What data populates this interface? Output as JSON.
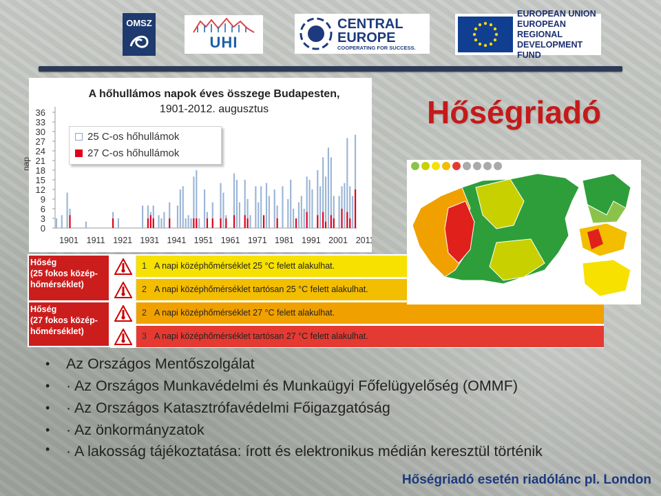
{
  "logos": {
    "omsz": "OMSZ",
    "uhi": "UHI",
    "central_europe": [
      "CENTRAL",
      "EUROPE",
      "COOPERATING FOR SUCCESS."
    ],
    "eu": [
      "EUROPEAN UNION",
      "EUROPEAN REGIONAL",
      "DEVELOPMENT FUND"
    ]
  },
  "headline": "Hőségriadó",
  "chart_data": {
    "type": "bar",
    "title": "A hőhullámos napok éves összege Budapesten,",
    "subtitle": "1901-2012. augusztus",
    "ylabel": "nap",
    "ylim": [
      0,
      36
    ],
    "yticks": [
      0,
      3,
      6,
      9,
      12,
      15,
      18,
      21,
      24,
      27,
      30,
      33,
      36
    ],
    "xticks": [
      1901,
      1911,
      1921,
      1931,
      1941,
      1951,
      1961,
      1971,
      1981,
      1991,
      2001,
      2011
    ],
    "xlim": [
      1901,
      2012
    ],
    "legend": [
      "25 C-os hőhullámok",
      "27 C-os hőhullámok"
    ],
    "colors": {
      "s25": "#9bb5d6",
      "s27": "#e0001b"
    },
    "series": [
      {
        "name": "25 C-os hőhullámok",
        "points": [
          [
            1901,
            3
          ],
          [
            1903,
            4
          ],
          [
            1905,
            11
          ],
          [
            1906,
            6
          ],
          [
            1912,
            2
          ],
          [
            1922,
            5
          ],
          [
            1924,
            3
          ],
          [
            1933,
            7
          ],
          [
            1935,
            7
          ],
          [
            1936,
            5
          ],
          [
            1937,
            7
          ],
          [
            1939,
            4
          ],
          [
            1940,
            3
          ],
          [
            1941,
            5
          ],
          [
            1943,
            8
          ],
          [
            1946,
            7
          ],
          [
            1947,
            12
          ],
          [
            1948,
            13
          ],
          [
            1949,
            3
          ],
          [
            1950,
            4
          ],
          [
            1951,
            3
          ],
          [
            1952,
            16
          ],
          [
            1953,
            18
          ],
          [
            1954,
            3
          ],
          [
            1956,
            12
          ],
          [
            1957,
            5
          ],
          [
            1959,
            8
          ],
          [
            1962,
            14
          ],
          [
            1963,
            11
          ],
          [
            1964,
            4
          ],
          [
            1967,
            17
          ],
          [
            1968,
            15
          ],
          [
            1969,
            8
          ],
          [
            1971,
            15
          ],
          [
            1972,
            9
          ],
          [
            1973,
            4
          ],
          [
            1975,
            13
          ],
          [
            1976,
            8
          ],
          [
            1977,
            13
          ],
          [
            1979,
            14
          ],
          [
            1980,
            10
          ],
          [
            1982,
            12
          ],
          [
            1983,
            7
          ],
          [
            1985,
            13
          ],
          [
            1987,
            9
          ],
          [
            1988,
            15
          ],
          [
            1989,
            6
          ],
          [
            1991,
            8
          ],
          [
            1992,
            10
          ],
          [
            1993,
            6
          ],
          [
            1994,
            16
          ],
          [
            1995,
            15
          ],
          [
            1996,
            12
          ],
          [
            1998,
            18
          ],
          [
            1999,
            13
          ],
          [
            2000,
            22
          ],
          [
            2001,
            16
          ],
          [
            2002,
            25
          ],
          [
            2003,
            22
          ],
          [
            2004,
            10
          ],
          [
            2006,
            10
          ],
          [
            2007,
            13
          ],
          [
            2008,
            14
          ],
          [
            2009,
            28
          ],
          [
            2010,
            13
          ],
          [
            2011,
            10
          ],
          [
            2012,
            29
          ]
        ]
      },
      {
        "name": "27 C-os hőhullámok",
        "points": [
          [
            1906,
            4
          ],
          [
            1922,
            3
          ],
          [
            1935,
            3
          ],
          [
            1936,
            4
          ],
          [
            1937,
            3
          ],
          [
            1943,
            3
          ],
          [
            1952,
            3
          ],
          [
            1953,
            3
          ],
          [
            1957,
            3
          ],
          [
            1959,
            3
          ],
          [
            1962,
            3
          ],
          [
            1964,
            3
          ],
          [
            1967,
            4
          ],
          [
            1971,
            4
          ],
          [
            1972,
            3
          ],
          [
            1978,
            4
          ],
          [
            1983,
            3
          ],
          [
            1990,
            3
          ],
          [
            1994,
            5
          ],
          [
            1998,
            4
          ],
          [
            2000,
            5
          ],
          [
            2001,
            2
          ],
          [
            2003,
            4
          ],
          [
            2004,
            3
          ],
          [
            2007,
            6
          ],
          [
            2009,
            5
          ],
          [
            2010,
            3
          ],
          [
            2012,
            12
          ]
        ]
      }
    ]
  },
  "heat_table": {
    "groups": [
      {
        "lines": [
          "Hőség",
          "(25 fokos közép-",
          "hőmérséklet)"
        ]
      },
      {
        "lines": [
          "Hőség",
          "(27 fokos közép-",
          "hőmérséklet)"
        ]
      }
    ],
    "rows": [
      {
        "level": "1",
        "text": "A napi középhőmérséklet 25 °C felett alakulhat.",
        "color": "#f6e100"
      },
      {
        "level": "2",
        "text": "A napi középhőmérséklet tartósan 25 °C felett alakulhat.",
        "color": "#f3bd00"
      },
      {
        "level": "2",
        "text": "A napi középhőmérséklet 27 °C felett alakulhat.",
        "color": "#f0a100"
      },
      {
        "level": "3",
        "text": "A napi középhőmérséklet tartósan 27 °C felett alakulhat.",
        "color": "#e53a32"
      }
    ]
  },
  "bullets": [
    "Az Országos Mentőszolgálat",
    "· Az Országos Munkavédelmi és Munkaügyi Főfelügyelőség (OMMF)",
    "· Az Országos Katasztrófavédelmi Főigazgatóság",
    "· Az önkormányzatok",
    "· A lakosság tájékoztatása: írott és elektronikus médián keresztül történik"
  ],
  "footer": "Hőségriadó esetén riadólánc pl.  London"
}
